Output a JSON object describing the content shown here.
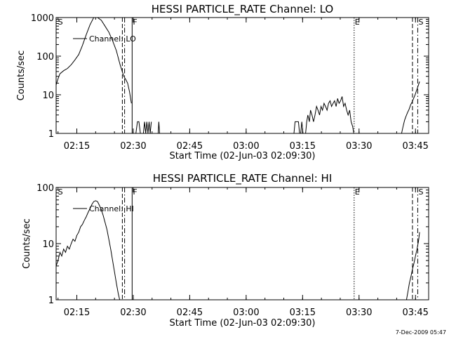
{
  "footer_date": "7-Dec-2009 05:47",
  "chart_data": [
    {
      "type": "line",
      "title": "HESSI PARTICLE_RATE Channel: LO",
      "xlabel": "Start Time (02-Jun-03 02:09:30)",
      "ylabel": "Counts/sec",
      "yscale": "log",
      "ylim": [
        1,
        1000
      ],
      "xlim_minutes_after_start": [
        0,
        99
      ],
      "ytick_labels": [
        "1",
        "10",
        "100",
        "1000"
      ],
      "yticks": [
        1,
        10,
        100,
        1000
      ],
      "xtick_labels": [
        "02:15",
        "02:30",
        "02:45",
        "03:00",
        "03:15",
        "03:30",
        "03:45"
      ],
      "xticks_minutes_after_start": [
        5.5,
        20.5,
        35.5,
        50.5,
        65.5,
        80.5,
        95.5
      ],
      "legend": {
        "label": "Channel: LO",
        "position": "top-left"
      },
      "markers": [
        {
          "label": "S",
          "x": 0.3,
          "style": "none"
        },
        {
          "label": "",
          "x": 17.6,
          "style": "dashed"
        },
        {
          "label": "",
          "x": 18.2,
          "style": "dashdot"
        },
        {
          "label": "F",
          "x": 20.2,
          "style": "solid"
        },
        {
          "label": "E",
          "x": 79.2,
          "style": "dotted"
        },
        {
          "label": "",
          "x": 94.7,
          "style": "dashed"
        },
        {
          "label": "S",
          "x": 96.1,
          "style": "dashdot"
        }
      ],
      "series": [
        {
          "name": "Channel: LO",
          "segments": [
            {
              "x": [
                0,
                0.5,
                1,
                2,
                3,
                4,
                5,
                6,
                7,
                8,
                9,
                10,
                11,
                12,
                13,
                14,
                15,
                16,
                17,
                18,
                18.5,
                19,
                19.5,
                20
              ],
              "y": [
                18,
                26,
                35,
                42,
                48,
                60,
                80,
                110,
                190,
                360,
                650,
                1000,
                1000,
                850,
                600,
                420,
                250,
                140,
                60,
                30,
                25,
                20,
                12,
                6
              ]
            },
            {
              "x": [
                21.2,
                21.6,
                22,
                22.4
              ],
              "y": [
                1,
                2,
                2,
                1
              ]
            },
            {
              "x": [
                23.2,
                23.5,
                23.8,
                24.1,
                24.4,
                24.7,
                25,
                25.3
              ],
              "y": [
                1,
                2,
                1,
                2,
                1,
                2,
                1,
                2
              ]
            },
            {
              "x": [
                27.1,
                27.3,
                27.5
              ],
              "y": [
                1,
                2,
                1
              ]
            },
            {
              "x": [
                63.2,
                63.5,
                63.8,
                64.1,
                64.4,
                64.7,
                65,
                65.3,
                65.6,
                65.9
              ],
              "y": [
                1,
                2,
                2,
                2,
                2,
                1,
                1,
                2,
                1,
                1
              ]
            },
            {
              "x": [
                66.3,
                66.6,
                66.9,
                67.3,
                67.6,
                68,
                68.4,
                68.8,
                69.2,
                69.6,
                70,
                70.4,
                70.8,
                71.2,
                71.6,
                72,
                72.4,
                72.8,
                73.2,
                73.6,
                74,
                74.4,
                74.8,
                75.2,
                75.6,
                76,
                76.4,
                76.8,
                77.2,
                77.6,
                78,
                78.4,
                78.8,
                79.1
              ],
              "y": [
                1,
                2,
                3,
                2,
                4,
                3,
                2,
                3,
                5,
                4,
                3,
                5,
                4,
                6,
                5,
                4,
                6,
                7,
                5,
                6,
                7,
                5,
                8,
                6,
                7,
                9,
                5,
                6,
                4,
                3,
                4,
                2,
                1.5,
                1
              ]
            },
            {
              "x": [
                91.8,
                92.2,
                92.6,
                93,
                93.4,
                93.8,
                94.2,
                94.6,
                95,
                95.4,
                95.8,
                96.2,
                96.6
              ],
              "y": [
                1,
                1.5,
                2.2,
                2.8,
                3.5,
                4.2,
                5.5,
                6.5,
                8,
                10,
                13,
                17,
                22
              ]
            }
          ]
        }
      ]
    },
    {
      "type": "line",
      "title": "HESSI PARTICLE_RATE Channel: HI",
      "xlabel": "Start Time (02-Jun-03 02:09:30)",
      "ylabel": "Counts/sec",
      "yscale": "log",
      "ylim": [
        1,
        100
      ],
      "xlim_minutes_after_start": [
        0,
        99
      ],
      "ytick_labels": [
        "1",
        "10",
        "100"
      ],
      "yticks": [
        1,
        10,
        100
      ],
      "xtick_labels": [
        "02:15",
        "02:30",
        "02:45",
        "03:00",
        "03:15",
        "03:30",
        "03:45"
      ],
      "xticks_minutes_after_start": [
        5.5,
        20.5,
        35.5,
        50.5,
        65.5,
        80.5,
        95.5
      ],
      "legend": {
        "label": "Channel: HI",
        "position": "top-left"
      },
      "markers": [
        {
          "label": "S",
          "x": 0.3,
          "style": "none"
        },
        {
          "label": "",
          "x": 17.6,
          "style": "dashed"
        },
        {
          "label": "",
          "x": 18.2,
          "style": "dashdot"
        },
        {
          "label": "F",
          "x": 20.2,
          "style": "solid"
        },
        {
          "label": "E",
          "x": 79.2,
          "style": "dotted"
        },
        {
          "label": "",
          "x": 94.7,
          "style": "dashed"
        },
        {
          "label": "S",
          "x": 96.1,
          "style": "dashdot"
        }
      ],
      "series": [
        {
          "name": "Channel: HI",
          "segments": [
            {
              "x": [
                0,
                0.5,
                1,
                1.5,
                2,
                2.5,
                3,
                3.5,
                4,
                4.5,
                5,
                5.5,
                6,
                6.5,
                7,
                7.5,
                8,
                8.5,
                9,
                9.5,
                10,
                10.5,
                11,
                11.5,
                12,
                12.5,
                13,
                13.5,
                14,
                14.5,
                15,
                15.5,
                16,
                16.5,
                16.9
              ],
              "y": [
                4,
                5,
                7,
                6,
                8,
                7,
                9,
                8,
                10,
                12,
                11,
                14,
                16,
                20,
                22,
                26,
                30,
                36,
                42,
                50,
                56,
                58,
                56,
                48,
                40,
                32,
                24,
                18,
                12,
                8,
                5,
                3.2,
                2,
                1.3,
                1
              ]
            },
            {
              "x": [
                93.1,
                93.5,
                93.9,
                94.3,
                94.7,
                95.1,
                95.5,
                95.9,
                96.3,
                96.6
              ],
              "y": [
                1,
                1.4,
                2,
                2.6,
                3.5,
                4.5,
                6,
                8,
                11,
                16
              ]
            }
          ]
        }
      ]
    }
  ]
}
